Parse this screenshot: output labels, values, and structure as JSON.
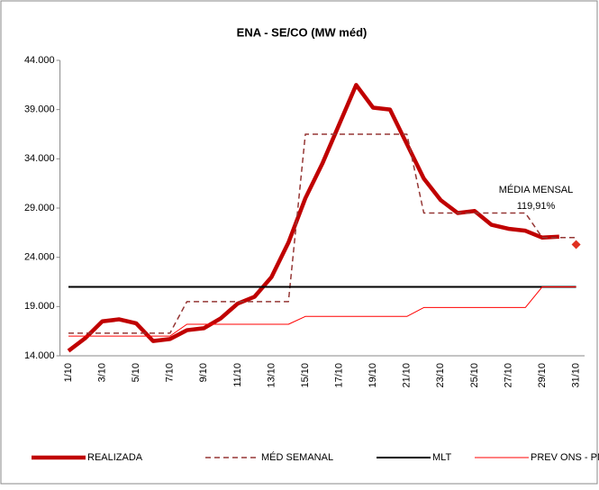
{
  "chart_data": {
    "type": "line",
    "title": "ENA - SE/CO (MW méd)",
    "categories": [
      "1/10",
      null,
      "3/10",
      null,
      "5/10",
      null,
      "7/10",
      null,
      "9/10",
      null,
      "11/10",
      null,
      "13/10",
      null,
      "15/10",
      null,
      "17/10",
      null,
      "19/10",
      null,
      "21/10",
      null,
      "23/10",
      null,
      "25/10",
      null,
      "27/10",
      null,
      "29/10",
      null,
      "31/10"
    ],
    "ylim": [
      14000,
      44000
    ],
    "yticks": [
      {
        "value": 14000,
        "label": "14.000"
      },
      {
        "value": 19000,
        "label": "19.000"
      },
      {
        "value": 24000,
        "label": "24.000"
      },
      {
        "value": 29000,
        "label": "29.000"
      },
      {
        "value": 34000,
        "label": "34.000"
      },
      {
        "value": 39000,
        "label": "39.000"
      },
      {
        "value": 44000,
        "label": "44.000"
      }
    ],
    "series": [
      {
        "name": "REALIZADA",
        "color": "#c00000",
        "width": 4.5,
        "dashed": false,
        "values": [
          14500,
          15800,
          17500,
          17700,
          17300,
          15500,
          15700,
          16600,
          16800,
          17800,
          19300,
          20000,
          22000,
          25500,
          30000,
          33500,
          37500,
          41500,
          39200,
          39000,
          35500,
          32000,
          29800,
          28500,
          28700,
          27300,
          26900,
          26700,
          26000,
          26100,
          null
        ]
      },
      {
        "name": "MÉD SEMANAL",
        "color": "#953735",
        "width": 1.5,
        "dashed": true,
        "values": [
          16300,
          16300,
          16300,
          16300,
          16300,
          16300,
          16300,
          19500,
          19500,
          19500,
          19500,
          19500,
          19500,
          19500,
          36500,
          36500,
          36500,
          36500,
          36500,
          36500,
          36500,
          28500,
          28500,
          28500,
          28500,
          28500,
          28500,
          28500,
          26000,
          26000,
          26000
        ]
      },
      {
        "name": "MLT",
        "color": "#000000",
        "width": 2,
        "dashed": false,
        "values": [
          21000,
          21000,
          21000,
          21000,
          21000,
          21000,
          21000,
          21000,
          21000,
          21000,
          21000,
          21000,
          21000,
          21000,
          21000,
          21000,
          21000,
          21000,
          21000,
          21000,
          21000,
          21000,
          21000,
          21000,
          21000,
          21000,
          21000,
          21000,
          21000,
          21000,
          21000
        ]
      },
      {
        "name": "PREV ONS - PMO",
        "color": "#ff0000",
        "width": 1,
        "dashed": false,
        "values": [
          16000,
          16000,
          16000,
          16000,
          16000,
          16000,
          16000,
          17200,
          17200,
          17200,
          17200,
          17200,
          17200,
          17200,
          18000,
          18000,
          18000,
          18000,
          18000,
          18000,
          18000,
          18900,
          18900,
          18900,
          18900,
          18900,
          18900,
          18900,
          21000,
          21000,
          21000
        ]
      }
    ],
    "annotation": {
      "lines": [
        "MÉDIA MENSAL",
        "119,91%"
      ],
      "index": 30,
      "value": 25300,
      "color": "#e03020"
    }
  }
}
